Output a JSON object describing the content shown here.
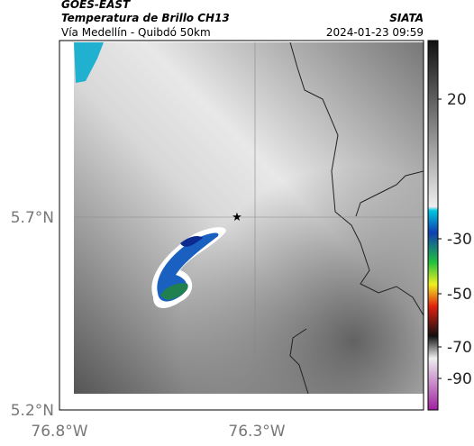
{
  "header": {
    "satellite": "GOES-EAST",
    "product": "Temperatura de Brillo CH13",
    "route": "Vía Medellín - Quibdó 50km",
    "source": "SIATA",
    "datetime": "2024-01-23 09:59"
  },
  "map": {
    "lat_labels": [
      "5.7°N",
      "5.2°N"
    ],
    "lon_labels": [
      "76.8°W",
      "76.3°W"
    ]
  },
  "colorbar": {
    "ticks": [
      20,
      -30,
      -50,
      -70,
      -90
    ]
  }
}
